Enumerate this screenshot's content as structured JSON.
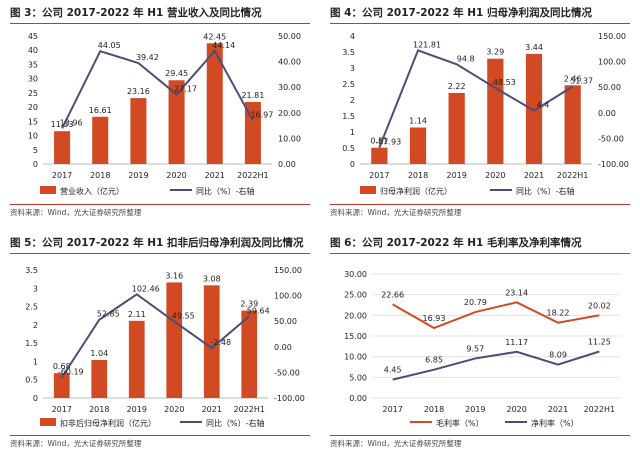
{
  "colors": {
    "bar": "#d24a23",
    "line": "#4b4d7a",
    "accent": "#c0392b"
  },
  "panels": [
    {
      "title": "图 3：公司 2017-2022 年 H1 营业收入及同比情况",
      "source": "资料来源：Wind，光大证券研究所整理"
    },
    {
      "title": "图 4：公司 2017-2022 年 H1 归母净利润及同比情况",
      "source": "资料来源：Wind，光大证券研究所整理"
    },
    {
      "title": "图 5：公司 2017-2022 年 H1 扣非后归母净利润及同比情况",
      "source": "资料来源：Wind，光大证券研究所整理"
    },
    {
      "title": "图 6：公司 2017-2022 年 H1 毛利率及净利率情况",
      "source": "资料来源：Wind，光大证券研究所整理"
    }
  ],
  "chart_data": [
    {
      "type": "bar+line",
      "categories": [
        "2017",
        "2018",
        "2019",
        "2020",
        "2021",
        "2022H1"
      ],
      "bar_series": {
        "name": "营业收入（亿元）",
        "values": [
          11.53,
          16.61,
          23.16,
          29.45,
          42.45,
          21.81
        ]
      },
      "line_series": {
        "name": "同比（%）-右轴",
        "values": [
          13.96,
          44.05,
          39.42,
          27.17,
          44.14,
          16.97
        ]
      },
      "ylim": [
        0,
        45
      ],
      "yticks": [
        0,
        5,
        10,
        15,
        20,
        25,
        30,
        35,
        40,
        45
      ],
      "y2lim": [
        0,
        50
      ],
      "y2ticks": [
        0,
        10,
        20,
        30,
        40,
        50
      ],
      "legend": "bottom"
    },
    {
      "type": "bar+line",
      "categories": [
        "2017",
        "2018",
        "2019",
        "2020",
        "2021",
        "2022H1"
      ],
      "bar_series": {
        "name": "归母净利润（亿元）",
        "values": [
          0.51,
          1.14,
          2.22,
          3.29,
          3.44,
          2.46
        ]
      },
      "line_series": {
        "name": "同比（%）-右轴",
        "values": [
          -67.93,
          121.81,
          94.8,
          48.53,
          4.4,
          51.37
        ]
      },
      "ylim": [
        0,
        4
      ],
      "yticks": [
        0,
        0.5,
        1,
        1.5,
        2,
        2.5,
        3,
        3.5,
        4
      ],
      "y2lim": [
        -100,
        150
      ],
      "y2ticks": [
        -100,
        -50,
        0,
        50,
        100,
        150
      ],
      "legend": "bottom"
    },
    {
      "type": "bar+line",
      "categories": [
        "2017",
        "2018",
        "2019",
        "2020",
        "2021",
        "2022H1"
      ],
      "bar_series": {
        "name": "扣非后归母净利润（亿元）",
        "values": [
          0.68,
          1.04,
          2.11,
          3.16,
          3.08,
          2.39
        ]
      },
      "line_series": {
        "name": "同比（%）-右轴",
        "values": [
          -60.19,
          52.85,
          102.46,
          49.55,
          -2.48,
          59.64
        ]
      },
      "ylim": [
        0,
        3.5
      ],
      "yticks": [
        0,
        0.5,
        1,
        1.5,
        2,
        2.5,
        3,
        3.5
      ],
      "y2lim": [
        -100,
        150
      ],
      "y2ticks": [
        -100,
        -50,
        0,
        50,
        100,
        150
      ],
      "legend": "bottom"
    },
    {
      "type": "line",
      "categories": [
        "2017",
        "2018",
        "2019",
        "2020",
        "2021",
        "2022H1"
      ],
      "series": [
        {
          "name": "毛利率（%）",
          "values": [
            22.66,
            16.93,
            20.79,
            23.14,
            18.22,
            20.02
          ]
        },
        {
          "name": "净利率（%）",
          "values": [
            4.45,
            6.85,
            9.57,
            11.17,
            8.09,
            11.25
          ]
        }
      ],
      "ylim": [
        0,
        30
      ],
      "yticks": [
        0,
        5,
        10,
        15,
        20,
        25,
        30
      ],
      "legend": "bottom"
    }
  ]
}
